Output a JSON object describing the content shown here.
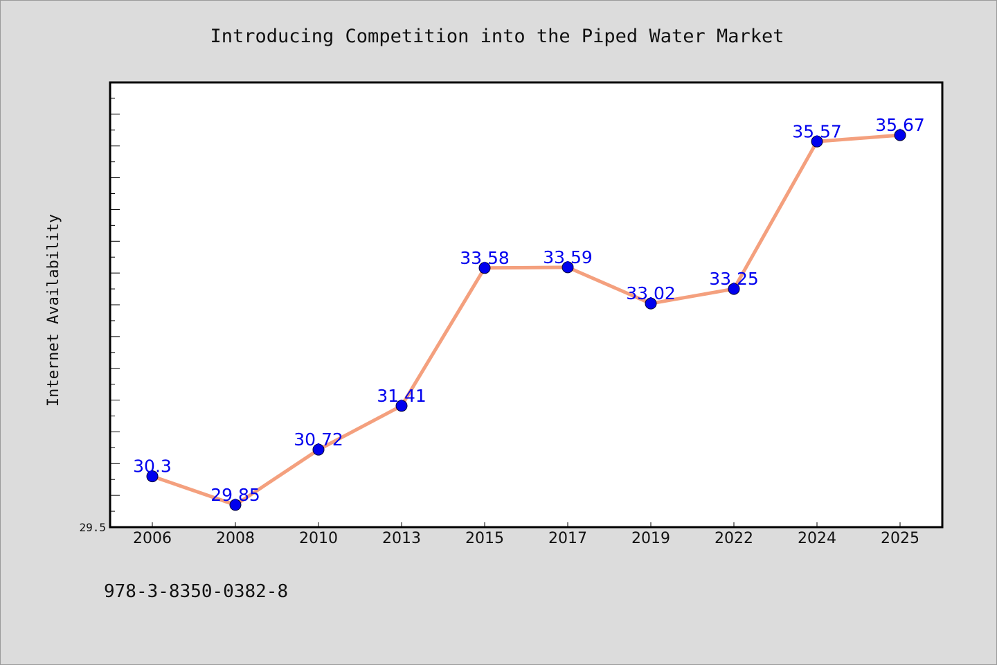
{
  "chart_data": {
    "type": "line",
    "title": "Introducing Competition into the Piped Water Market",
    "xlabel": "",
    "ylabel": "Internet Availability",
    "categories": [
      "2006",
      "2008",
      "2010",
      "2013",
      "2015",
      "2017",
      "2019",
      "2022",
      "2024",
      "2025"
    ],
    "series": [
      {
        "values": [
          30.3,
          29.85,
          30.72,
          31.41,
          33.58,
          33.59,
          33.02,
          33.25,
          35.57,
          35.67
        ]
      }
    ],
    "data_labels": [
      "30.3",
      "29.85",
      "30.72",
      "31.41",
      "33.58",
      "33.59",
      "33.02",
      "33.25",
      "35.57",
      "35.67"
    ],
    "ylim": [
      29.5,
      36.5
    ],
    "yticks_labeled": [
      "29.5"
    ],
    "grid": false,
    "legend": "none",
    "colors": {
      "line": "#f4a07e",
      "marker": "#0000ee",
      "data_label": "#0000ee",
      "background": "#dcdcdc",
      "plot": "#ffffff"
    }
  },
  "footer": {
    "isbn": "978-3-8350-0382-8"
  }
}
